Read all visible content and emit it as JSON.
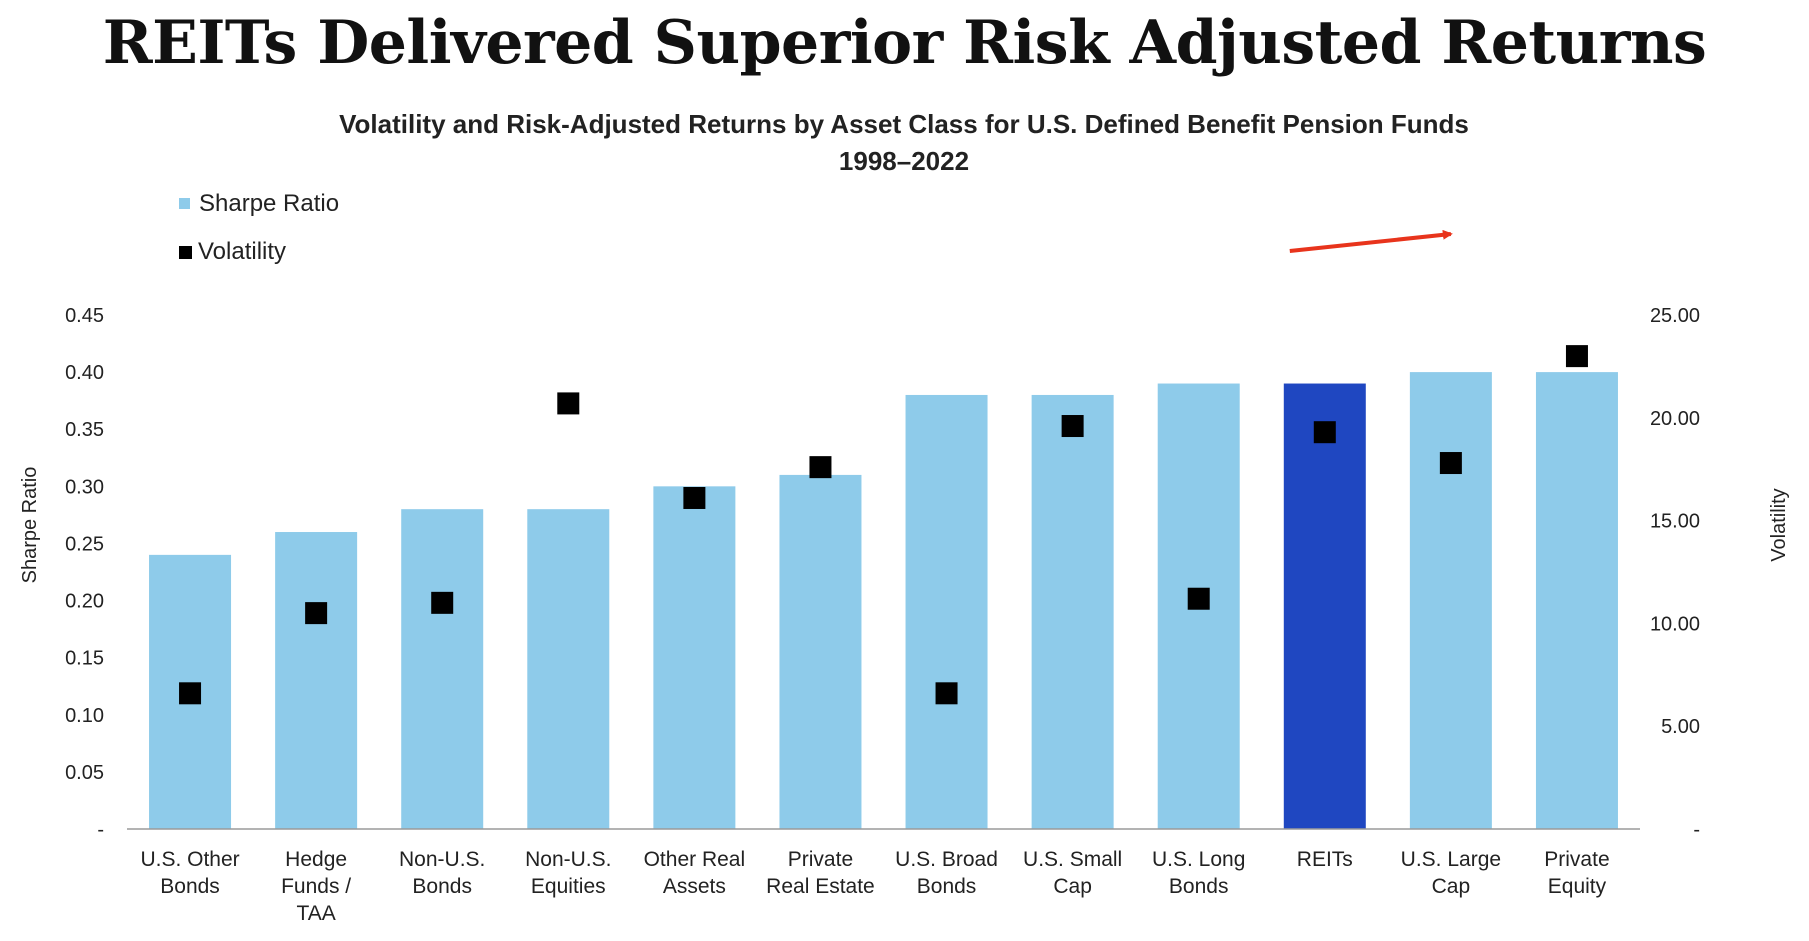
{
  "headline": "REITs Delivered Superior Risk Adjusted Returns",
  "chart_data": {
    "type": "bar",
    "title": "Volatility and Risk-Adjusted Returns by Asset Class for U.S. Defined Benefit Pension Funds",
    "subtitle": "1998–2022",
    "categories": [
      [
        "U.S. Other",
        "Bonds"
      ],
      [
        "Hedge",
        "Funds /",
        "TAA"
      ],
      [
        "Non-U.S.",
        "Bonds"
      ],
      [
        "Non-U.S.",
        "Equities"
      ],
      [
        "Other Real",
        "Assets"
      ],
      [
        "Private",
        "Real Estate"
      ],
      [
        "U.S. Broad",
        "Bonds"
      ],
      [
        "U.S. Small",
        "Cap"
      ],
      [
        "U.S. Long",
        "Bonds"
      ],
      [
        "REITs"
      ],
      [
        "U.S. Large",
        "Cap"
      ],
      [
        "Private",
        "Equity"
      ]
    ],
    "series": [
      {
        "name": "Sharpe Ratio",
        "kind": "bar",
        "axis": "left",
        "values": [
          0.24,
          0.26,
          0.28,
          0.28,
          0.3,
          0.31,
          0.38,
          0.38,
          0.39,
          0.39,
          0.4,
          0.4
        ],
        "color": "#8ecbea",
        "highlight_index": 9,
        "highlight_color": "#1f47c1"
      },
      {
        "name": "Volatility",
        "kind": "marker",
        "axis": "right",
        "values": [
          6.6,
          10.5,
          11.0,
          20.7,
          16.1,
          17.6,
          6.6,
          19.6,
          11.2,
          19.3,
          17.8,
          23.0
        ],
        "color": "#000000"
      }
    ],
    "ylabel_left": "Sharpe Ratio",
    "ylabel_right": "Volatility",
    "ylim_left": [
      0,
      0.45
    ],
    "ylim_right": [
      0,
      25
    ],
    "yticks_left": [
      "-",
      "0.05",
      "0.10",
      "0.15",
      "0.20",
      "0.25",
      "0.30",
      "0.35",
      "0.40",
      "0.45"
    ],
    "yticks_right": [
      "-",
      "5.00",
      "10.00",
      "15.00",
      "20.00",
      "25.00"
    ],
    "legend": {
      "position": "top-left",
      "entries": [
        "Sharpe Ratio",
        "Volatility"
      ]
    },
    "grid": false,
    "annotation": {
      "type": "arrow",
      "color": "#e8341c",
      "from_category": "REITs",
      "to_category": "U.S. Large Cap"
    }
  }
}
